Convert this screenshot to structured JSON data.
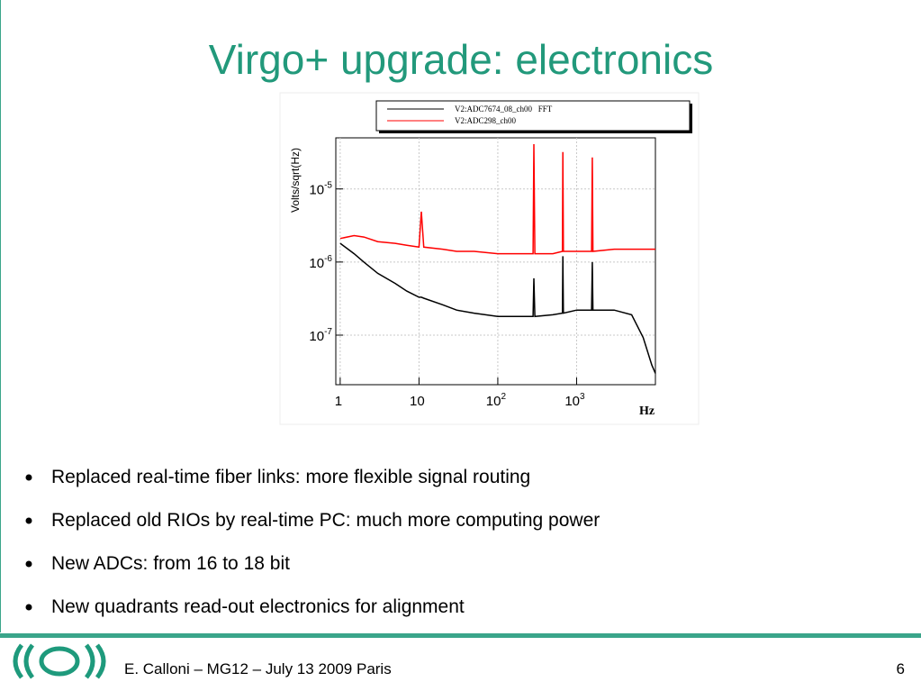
{
  "title": "Virgo+ upgrade: electronics",
  "chart_data": {
    "type": "line",
    "y_label": "Volts/sqrt(Hz)",
    "x_label": "Hz",
    "log_x": true,
    "log_y": true,
    "grid": true,
    "xlim": [
      0.88,
      10000
    ],
    "ylim": [
      2.1e-08,
      5e-05
    ],
    "xticks": [
      1,
      10,
      {
        "value": 100,
        "label": "10",
        "exponent": "2"
      },
      {
        "value": 1000,
        "label": "10",
        "exponent": "3"
      }
    ],
    "yticks": [
      {
        "value": 1e-07,
        "label": "10",
        "exponent": "-7"
      },
      {
        "value": 1e-06,
        "label": "10",
        "exponent": "-6"
      },
      {
        "value": 1e-05,
        "label": "10",
        "exponent": "-5"
      }
    ],
    "x": [
      1,
      1.5,
      2,
      3,
      5,
      7,
      10,
      10.7,
      11.5,
      20,
      30,
      50,
      100,
      200,
      280,
      287,
      295,
      500,
      660,
      670,
      680,
      1000,
      1550,
      1580,
      1610,
      3000,
      5000,
      7000,
      9000,
      10000
    ],
    "series": [
      {
        "name": "V2:ADC7674_08_ch00   FFT",
        "color": "#000000",
        "values": [
          1.8e-06,
          1.3e-06,
          1e-06,
          7e-07,
          5.1e-07,
          4e-07,
          3.3e-07,
          3.3e-07,
          3.2e-07,
          2.6e-07,
          2.2e-07,
          2e-07,
          1.8e-07,
          1.8e-07,
          1.8e-07,
          6e-07,
          1.8e-07,
          1.9e-07,
          2e-07,
          1.2e-06,
          2e-07,
          2.2e-07,
          2.2e-07,
          1e-06,
          2.2e-07,
          2.2e-07,
          1.9e-07,
          9.3e-08,
          3.9e-08,
          3e-08
        ]
      },
      {
        "name": "V2:ADC298_ch00",
        "color": "#ff0000",
        "values": [
          2.1e-06,
          2.3e-06,
          2.2e-06,
          1.9e-06,
          1.8e-06,
          1.7e-06,
          1.6e-06,
          4.9e-06,
          1.6e-06,
          1.5e-06,
          1.4e-06,
          1.4e-06,
          1.3e-06,
          1.3e-06,
          1.3e-06,
          4.1e-05,
          1.3e-06,
          1.3e-06,
          1.4e-06,
          3.2e-05,
          1.4e-06,
          1.4e-06,
          1.4e-06,
          2.7e-05,
          1.4e-06,
          1.5e-06,
          1.5e-06,
          1.5e-06,
          1.5e-06,
          1.5e-06
        ]
      }
    ]
  },
  "bullets": [
    "Replaced real-time fiber links: more flexible signal routing",
    "Replaced old RIOs by real-time PC: much more computing power",
    "New ADCs: from 16 to 18 bit",
    "New quadrants read-out electronics for alignment"
  ],
  "footer": {
    "text": "E. Calloni – MG12 – July 13 2009 Paris",
    "page": "6"
  }
}
